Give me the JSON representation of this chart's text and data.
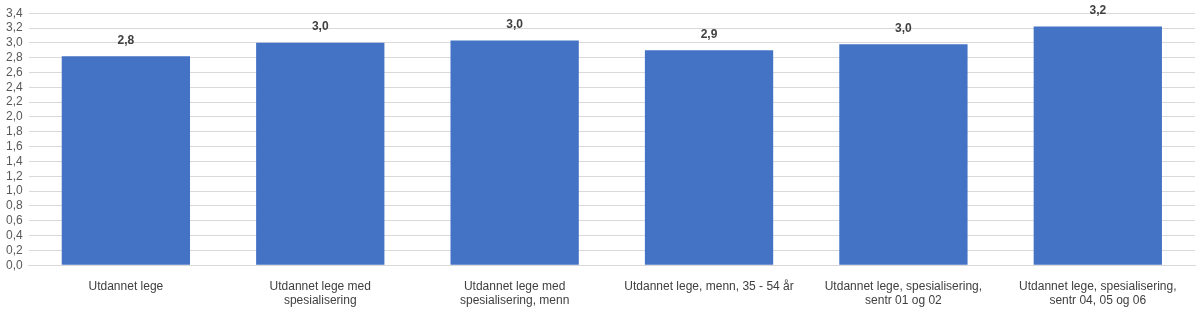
{
  "chart_data": {
    "type": "bar",
    "categories": [
      "Utdannet lege",
      "Utdannet lege med spesialisering",
      "Utdannet lege med spesialisering, menn",
      "Utdannet lege, menn, 35 - 54 år",
      "Utdannet lege, spesialisering, sentr 01 og 02",
      "Utdannet lege, spesialisering, sentr 04, 05 og 06"
    ],
    "values": [
      2.82,
      3.0,
      3.03,
      2.9,
      2.98,
      3.22
    ],
    "value_labels": [
      "2,8",
      "3,0",
      "3,0",
      "2,9",
      "3,0",
      "3,2"
    ],
    "color": "#4472c4",
    "ylim": [
      0,
      3.4
    ],
    "yticks": [
      {
        "value": 0,
        "label": "0,0"
      },
      {
        "value": 0.2,
        "label": "0,2"
      },
      {
        "value": 0.4,
        "label": "0,4"
      },
      {
        "value": 0.6,
        "label": "0,6"
      },
      {
        "value": 0.8,
        "label": "0,8"
      },
      {
        "value": 1.0,
        "label": "1,0"
      },
      {
        "value": 1.2,
        "label": "1,2"
      },
      {
        "value": 1.4,
        "label": "1,4"
      },
      {
        "value": 1.6,
        "label": "1,6"
      },
      {
        "value": 1.8,
        "label": "1,8"
      },
      {
        "value": 2.0,
        "label": "2,0"
      },
      {
        "value": 2.2,
        "label": "2,2"
      },
      {
        "value": 2.4,
        "label": "2,4"
      },
      {
        "value": 2.6,
        "label": "2,6"
      },
      {
        "value": 2.8,
        "label": "2,8"
      },
      {
        "value": 3.0,
        "label": "3,0"
      },
      {
        "value": 3.2,
        "label": "3,2"
      },
      {
        "value": 3.4,
        "label": "3,4"
      }
    ],
    "grid": "y",
    "legend": false
  }
}
